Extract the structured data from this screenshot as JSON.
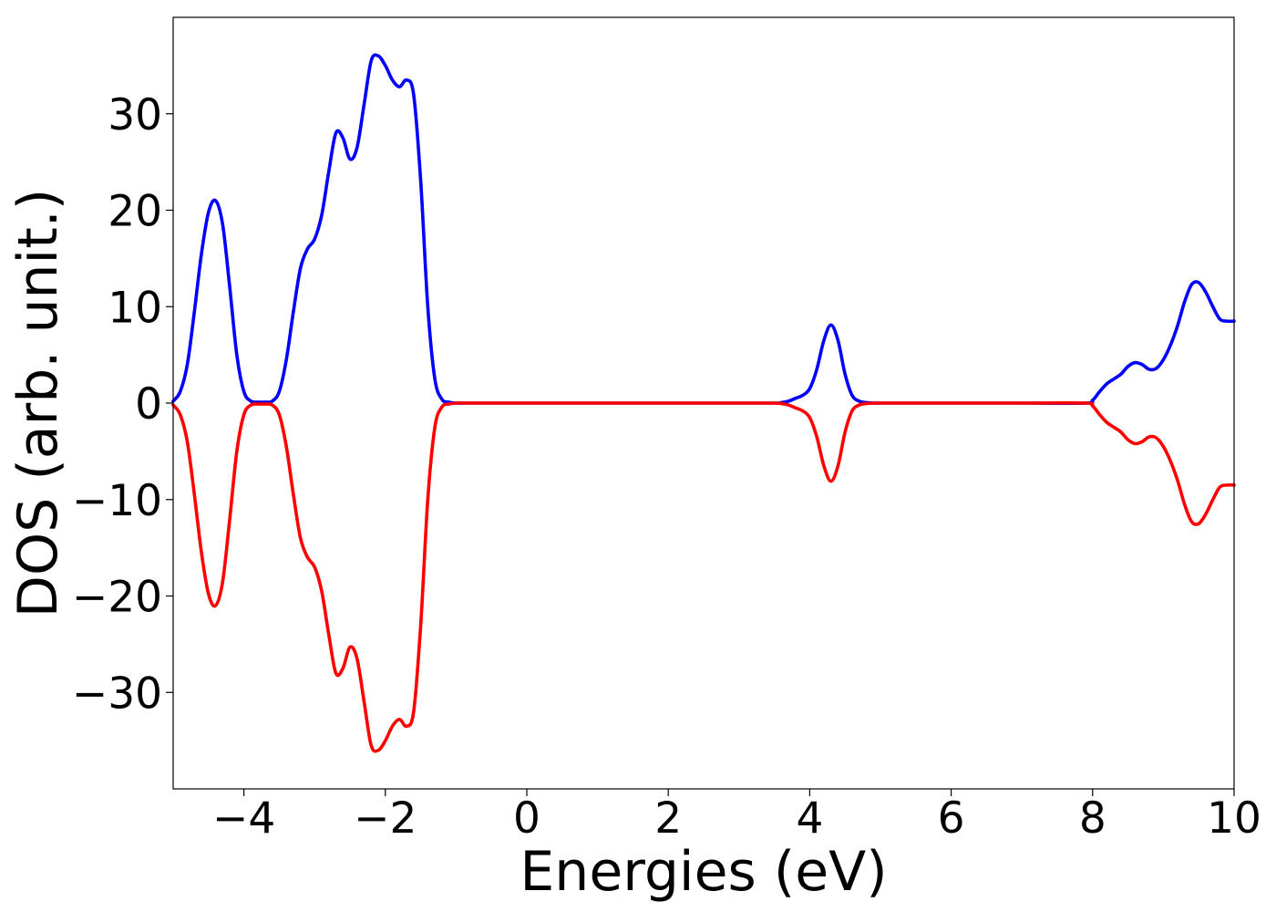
{
  "chart_data": {
    "type": "line",
    "title": "",
    "xlabel": "Energies (eV)",
    "ylabel": "DOS (arb. unit.)",
    "xlim": [
      -5,
      10
    ],
    "ylim": [
      -40,
      40
    ],
    "grid": false,
    "legend": "none",
    "xticks": [
      -4,
      -2,
      0,
      2,
      4,
      6,
      8,
      10
    ],
    "xtick_labels": [
      "−4",
      "−2",
      "0",
      "2",
      "4",
      "6",
      "8",
      "10"
    ],
    "yticks": [
      -30,
      -20,
      -10,
      0,
      10,
      20,
      30
    ],
    "ytick_labels": [
      "−30",
      "−20",
      "−10",
      "0",
      "10",
      "20",
      "30"
    ],
    "series": [
      {
        "color": "#0000ff",
        "x": [
          -5.0,
          -4.9,
          -4.8,
          -4.7,
          -4.6,
          -4.5,
          -4.4,
          -4.3,
          -4.2,
          -4.1,
          -4.0,
          -3.9,
          -3.8,
          -3.7,
          -3.6,
          -3.5,
          -3.4,
          -3.3,
          -3.2,
          -3.1,
          -3.0,
          -2.9,
          -2.8,
          -2.7,
          -2.6,
          -2.5,
          -2.4,
          -2.3,
          -2.2,
          -2.1,
          -2.0,
          -1.9,
          -1.8,
          -1.7,
          -1.6,
          -1.5,
          -1.4,
          -1.3,
          -1.2,
          -1.1,
          -1.0,
          -0.9,
          -0.8,
          -0.7,
          -0.6,
          -0.5,
          0.0,
          1.0,
          2.0,
          3.0,
          3.5,
          3.6,
          3.7,
          3.8,
          3.9,
          4.0,
          4.1,
          4.2,
          4.3,
          4.4,
          4.5,
          4.6,
          4.7,
          4.8,
          4.9,
          5.0,
          5.1,
          5.2,
          6.0,
          7.0,
          7.9,
          8.0,
          8.1,
          8.2,
          8.3,
          8.4,
          8.5,
          8.6,
          8.7,
          8.8,
          8.9,
          9.0,
          9.1,
          9.2,
          9.3,
          9.4,
          9.5,
          9.6,
          9.7,
          9.8,
          9.9,
          10.0
        ],
        "y": [
          0.2,
          1.2,
          4.0,
          9.5,
          15.5,
          19.8,
          21.0,
          18.5,
          12.0,
          5.0,
          1.2,
          0.2,
          0.1,
          0.1,
          0.2,
          1.2,
          4.5,
          9.5,
          14.0,
          16.0,
          17.0,
          19.5,
          24.0,
          28.0,
          27.5,
          25.3,
          26.5,
          31.0,
          35.5,
          36.0,
          35.0,
          33.5,
          32.8,
          33.5,
          32.0,
          23.0,
          10.0,
          2.5,
          0.4,
          0.1,
          0.0,
          0.0,
          0.0,
          0.0,
          0.0,
          0.0,
          0.0,
          0.0,
          0.0,
          0.0,
          0.0,
          0.05,
          0.2,
          0.5,
          0.8,
          1.5,
          3.5,
          6.5,
          8.1,
          6.5,
          3.0,
          0.8,
          0.2,
          0.05,
          0.0,
          0.0,
          0.0,
          0.0,
          0.0,
          0.0,
          0.0,
          0.3,
          1.2,
          2.0,
          2.5,
          3.0,
          3.8,
          4.2,
          4.0,
          3.5,
          3.6,
          4.5,
          6.0,
          8.0,
          10.5,
          12.3,
          12.5,
          11.5,
          10.0,
          8.7,
          8.5,
          8.5
        ]
      },
      {
        "color": "#ff0000",
        "x": [
          -5.0,
          -4.9,
          -4.8,
          -4.7,
          -4.6,
          -4.5,
          -4.4,
          -4.3,
          -4.2,
          -4.1,
          -4.0,
          -3.9,
          -3.8,
          -3.7,
          -3.6,
          -3.5,
          -3.4,
          -3.3,
          -3.2,
          -3.1,
          -3.0,
          -2.9,
          -2.8,
          -2.7,
          -2.6,
          -2.5,
          -2.4,
          -2.3,
          -2.2,
          -2.1,
          -2.0,
          -1.9,
          -1.8,
          -1.7,
          -1.6,
          -1.5,
          -1.4,
          -1.3,
          -1.2,
          -1.1,
          -1.0,
          -0.9,
          -0.8,
          -0.7,
          -0.6,
          -0.5,
          0.0,
          1.0,
          2.0,
          3.0,
          3.5,
          3.6,
          3.7,
          3.8,
          3.9,
          4.0,
          4.1,
          4.2,
          4.3,
          4.4,
          4.5,
          4.6,
          4.7,
          4.8,
          4.9,
          5.0,
          5.1,
          5.2,
          6.0,
          7.0,
          7.9,
          8.0,
          8.1,
          8.2,
          8.3,
          8.4,
          8.5,
          8.6,
          8.7,
          8.8,
          8.9,
          9.0,
          9.1,
          9.2,
          9.3,
          9.4,
          9.5,
          9.6,
          9.7,
          9.8,
          9.9,
          10.0
        ],
        "y": [
          -0.2,
          -1.2,
          -4.0,
          -9.5,
          -15.5,
          -19.8,
          -21.0,
          -18.5,
          -12.0,
          -5.0,
          -1.2,
          -0.2,
          -0.1,
          -0.1,
          -0.2,
          -1.2,
          -4.5,
          -9.5,
          -14.0,
          -16.0,
          -17.0,
          -19.5,
          -24.0,
          -28.0,
          -27.5,
          -25.3,
          -26.5,
          -31.0,
          -35.5,
          -36.0,
          -35.0,
          -33.5,
          -32.8,
          -33.5,
          -32.0,
          -23.0,
          -10.0,
          -2.5,
          -0.4,
          -0.1,
          0.0,
          0.0,
          0.0,
          0.0,
          0.0,
          0.0,
          0.0,
          0.0,
          0.0,
          0.0,
          0.0,
          -0.05,
          -0.2,
          -0.5,
          -0.8,
          -1.5,
          -3.5,
          -6.5,
          -8.1,
          -6.5,
          -3.0,
          -0.8,
          -0.2,
          -0.05,
          0.0,
          0.0,
          0.0,
          0.0,
          0.0,
          0.0,
          0.0,
          -0.3,
          -1.2,
          -2.0,
          -2.5,
          -3.0,
          -3.8,
          -4.2,
          -4.0,
          -3.5,
          -3.6,
          -4.5,
          -6.0,
          -8.0,
          -10.5,
          -12.3,
          -12.5,
          -11.5,
          -10.0,
          -8.7,
          -8.5,
          -8.5
        ]
      }
    ]
  }
}
